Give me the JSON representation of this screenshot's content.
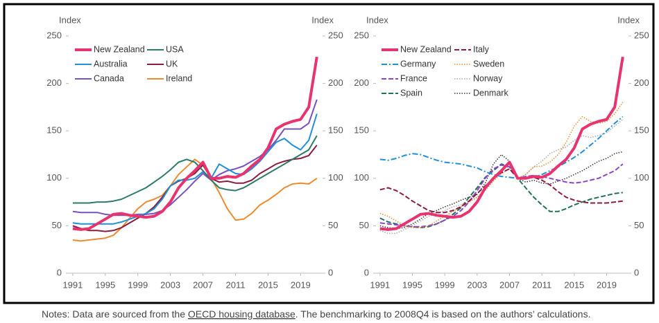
{
  "chart_data": [
    {
      "type": "line",
      "y_label": "Index",
      "y2_label": "Index",
      "x": [
        1991,
        1992,
        1993,
        1994,
        1995,
        1996,
        1997,
        1998,
        1999,
        2000,
        2001,
        2002,
        2003,
        2004,
        2005,
        2006,
        2007,
        2008,
        2009,
        2010,
        2011,
        2012,
        2013,
        2014,
        2015,
        2016,
        2017,
        2018,
        2019,
        2020,
        2021
      ],
      "xlim": [
        1990.5,
        2021.7
      ],
      "xticks": [
        1991,
        1995,
        1999,
        2003,
        2007,
        2011,
        2015,
        2019
      ],
      "ylim": [
        0,
        250
      ],
      "yticks": [
        0,
        50,
        100,
        150,
        200,
        250
      ],
      "y2lim": [
        0,
        250
      ],
      "y2ticks": [
        0,
        50,
        100,
        150,
        200,
        250
      ],
      "grid": false,
      "legend": "upper left",
      "series": [
        {
          "name": "New Zealand",
          "color": "#e8336e",
          "linewidth": 4,
          "dash": "solid",
          "values": [
            47,
            46,
            47,
            52,
            57,
            62,
            63,
            61,
            60,
            59,
            60,
            65,
            75,
            90,
            100,
            108,
            117,
            100,
            100,
            102,
            101,
            105,
            113,
            120,
            132,
            152,
            157,
            160,
            162,
            175,
            228
          ]
        },
        {
          "name": "USA",
          "color": "#2b7a6a",
          "linewidth": 2,
          "dash": "solid",
          "values": [
            74,
            74,
            74,
            75,
            75,
            76,
            78,
            82,
            86,
            90,
            96,
            102,
            109,
            117,
            120,
            117,
            108,
            98,
            90,
            88,
            87,
            90,
            95,
            100,
            105,
            110,
            115,
            120,
            125,
            130,
            145
          ]
        },
        {
          "name": "Australia",
          "color": "#1f8fd8",
          "linewidth": 2,
          "dash": "solid",
          "values": [
            53,
            52,
            52,
            52,
            52,
            52,
            54,
            57,
            60,
            63,
            68,
            78,
            92,
            98,
            98,
            100,
            107,
            100,
            115,
            110,
            105,
            104,
            110,
            118,
            128,
            138,
            142,
            135,
            130,
            140,
            168
          ]
        },
        {
          "name": "UK",
          "color": "#8b1a3e",
          "linewidth": 2,
          "dash": "solid",
          "values": [
            50,
            47,
            45,
            45,
            44,
            45,
            48,
            53,
            58,
            63,
            70,
            80,
            92,
            97,
            100,
            105,
            114,
            100,
            96,
            97,
            95,
            95,
            98,
            105,
            110,
            115,
            118,
            120,
            121,
            124,
            135
          ]
        },
        {
          "name": "Canada",
          "color": "#7a4fbf",
          "linewidth": 2,
          "dash": "solid",
          "values": [
            65,
            64,
            64,
            64,
            62,
            61,
            61,
            61,
            62,
            62,
            63,
            66,
            72,
            80,
            88,
            97,
            105,
            98,
            104,
            108,
            110,
            113,
            118,
            123,
            130,
            140,
            152,
            152,
            152,
            158,
            183
          ]
        },
        {
          "name": "Ireland",
          "color": "#ee8a2e",
          "linewidth": 2,
          "dash": "solid",
          "values": [
            35,
            34,
            35,
            36,
            37,
            40,
            48,
            58,
            68,
            75,
            78,
            82,
            92,
            104,
            112,
            120,
            114,
            100,
            85,
            68,
            56,
            57,
            63,
            72,
            77,
            83,
            90,
            94,
            95,
            94,
            100
          ]
        }
      ]
    },
    {
      "type": "line",
      "y_label": "Index",
      "y2_label": "Index",
      "x": [
        1991,
        1992,
        1993,
        1994,
        1995,
        1996,
        1997,
        1998,
        1999,
        2000,
        2001,
        2002,
        2003,
        2004,
        2005,
        2006,
        2007,
        2008,
        2009,
        2010,
        2011,
        2012,
        2013,
        2014,
        2015,
        2016,
        2017,
        2018,
        2019,
        2020,
        2021
      ],
      "xlim": [
        1990.5,
        2021.7
      ],
      "xticks": [
        1991,
        1995,
        1999,
        2003,
        2007,
        2011,
        2015,
        2019
      ],
      "ylim": [
        0,
        250
      ],
      "yticks": [
        0,
        50,
        100,
        150,
        200,
        250
      ],
      "y2lim": [
        0,
        250
      ],
      "y2ticks": [
        0,
        50,
        100,
        150,
        200,
        250
      ],
      "grid": false,
      "legend": "upper left",
      "series": [
        {
          "name": "New Zealand",
          "color": "#e8336e",
          "linewidth": 4,
          "dash": "solid",
          "values": [
            47,
            46,
            47,
            52,
            57,
            62,
            63,
            61,
            60,
            59,
            60,
            65,
            75,
            90,
            100,
            108,
            117,
            100,
            100,
            102,
            101,
            105,
            113,
            120,
            132,
            152,
            157,
            160,
            162,
            175,
            228
          ]
        },
        {
          "name": "Italy",
          "color": "#8b1a3e",
          "linewidth": 2,
          "dash": "dashed",
          "values": [
            88,
            90,
            87,
            82,
            76,
            71,
            66,
            64,
            64,
            66,
            70,
            76,
            84,
            92,
            100,
            106,
            110,
            100,
            100,
            101,
            98,
            93,
            86,
            80,
            77,
            75,
            74,
            74,
            74,
            75,
            76
          ]
        },
        {
          "name": "Germany",
          "color": "#1f8fd8",
          "linewidth": 2,
          "dash": "dashdot",
          "values": [
            120,
            119,
            121,
            124,
            126,
            125,
            122,
            119,
            117,
            116,
            115,
            113,
            111,
            107,
            104,
            102,
            101,
            100,
            100,
            101,
            104,
            108,
            112,
            117,
            122,
            128,
            135,
            142,
            150,
            158,
            165
          ]
        },
        {
          "name": "Sweden",
          "color": "#ee8a2e",
          "linewidth": 1.5,
          "dash": "dotted",
          "values": [
            63,
            60,
            55,
            50,
            48,
            48,
            50,
            55,
            60,
            65,
            70,
            75,
            80,
            88,
            97,
            105,
            110,
            100,
            104,
            112,
            113,
            117,
            125,
            138,
            155,
            165,
            160,
            158,
            160,
            168,
            180
          ]
        },
        {
          "name": "France",
          "color": "#8e44c7",
          "linewidth": 2,
          "dash": "dashed",
          "values": [
            53,
            52,
            51,
            50,
            49,
            49,
            50,
            52,
            56,
            60,
            66,
            75,
            87,
            100,
            110,
            114,
            112,
            100,
            102,
            103,
            102,
            100,
            98,
            96,
            95,
            96,
            98,
            100,
            104,
            108,
            115
          ]
        },
        {
          "name": "Norway",
          "color": "#aaaaaa",
          "linewidth": 1.5,
          "dash": "dotted",
          "values": [
            45,
            42,
            42,
            46,
            50,
            55,
            60,
            63,
            66,
            70,
            72,
            76,
            80,
            87,
            97,
            108,
            113,
            100,
            104,
            112,
            118,
            126,
            130,
            133,
            140,
            145,
            143,
            145,
            148,
            155,
            162
          ]
        },
        {
          "name": "Spain",
          "color": "#1f6f5a",
          "linewidth": 2,
          "dash": "dashed",
          "values": [
            58,
            54,
            52,
            50,
            49,
            48,
            49,
            52,
            56,
            62,
            69,
            80,
            90,
            101,
            108,
            115,
            112,
            100,
            90,
            80,
            72,
            65,
            65,
            68,
            72,
            75,
            78,
            80,
            82,
            84,
            85
          ]
        },
        {
          "name": "Denmark",
          "color": "#333333",
          "linewidth": 1.5,
          "dash": "dotted",
          "values": [
            50,
            48,
            47,
            48,
            52,
            57,
            63,
            66,
            70,
            73,
            77,
            80,
            83,
            95,
            115,
            125,
            118,
            100,
            96,
            98,
            95,
            94,
            97,
            100,
            104,
            108,
            113,
            118,
            121,
            126,
            128
          ]
        }
      ]
    }
  ],
  "notes": [
    "Notes:  Data are sourced from the ",
    "OECD housing database",
    ". The benchmarking to 2008Q4 is based on the authors’ calculations."
  ]
}
